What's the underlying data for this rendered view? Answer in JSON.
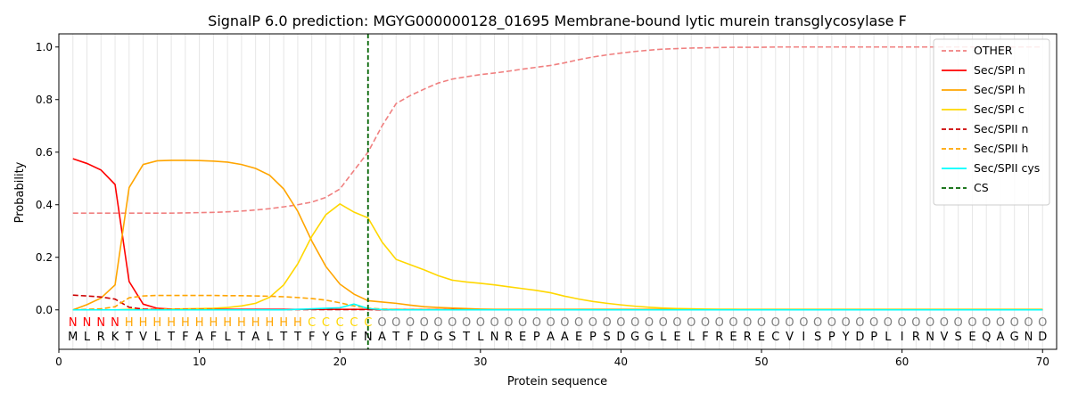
{
  "chart_data": {
    "type": "line",
    "title": "SignalP 6.0 prediction: MGYG000000128_01695 Membrane-bound lytic murein transglycosylase F",
    "xlabel": "Protein sequence",
    "ylabel": "Probability",
    "xlim": [
      0,
      71
    ],
    "ylim": [
      -0.15,
      1.05
    ],
    "xticks": [
      0,
      10,
      20,
      30,
      40,
      50,
      60,
      70
    ],
    "yticks": [
      0.0,
      0.2,
      0.4,
      0.6,
      0.8,
      1.0
    ],
    "legend_position": "top-right",
    "sequence": "MLRKTVLTFAFLTALTTFYGFNATFDGSTLNREPAAEPSDGGLELFRERECVISPYDPLIRNVSEQAGND",
    "labels": "NNNNHHHHHHHHHHHHHCCCCCOOOOOOOOOOOOOOOOOOOOOOOOOOOOOOOOOOOOOOOOOOOOOOOO",
    "label_colors": {
      "N": "#ff0000",
      "H": "#ffa500",
      "C": "#ffd700",
      "O": "#808080"
    },
    "cs_position": 22,
    "series": [
      {
        "name": "OTHER",
        "color": "#f08080",
        "dash": "dashed",
        "values": [
          0.368,
          0.368,
          0.368,
          0.368,
          0.368,
          0.368,
          0.368,
          0.368,
          0.369,
          0.37,
          0.371,
          0.373,
          0.376,
          0.38,
          0.385,
          0.392,
          0.4,
          0.41,
          0.428,
          0.46,
          0.53,
          0.6,
          0.7,
          0.785,
          0.815,
          0.84,
          0.863,
          0.878,
          0.887,
          0.895,
          0.901,
          0.908,
          0.916,
          0.923,
          0.93,
          0.94,
          0.952,
          0.962,
          0.97,
          0.977,
          0.983,
          0.988,
          0.992,
          0.994,
          0.996,
          0.997,
          0.998,
          0.999,
          0.999,
          0.999,
          1.0,
          1.0,
          1.0,
          1.0,
          1.0,
          1.0,
          1.0,
          1.0,
          1.0,
          1.0,
          1.0,
          1.0,
          1.0,
          1.0,
          1.0,
          1.0,
          1.0,
          1.0,
          1.0,
          1.0
        ]
      },
      {
        "name": "Sec/SPI n",
        "color": "#ff0000",
        "dash": "solid",
        "values": [
          0.575,
          0.557,
          0.532,
          0.477,
          0.108,
          0.022,
          0.006,
          0.003,
          0.002,
          0.002,
          0.002,
          0.002,
          0.002,
          0.002,
          0.002,
          0.002,
          0.002,
          0.002,
          0.002,
          0.002,
          0.002,
          0.002,
          0.001,
          0.001,
          0.001,
          0.001,
          0.001,
          0.001,
          0.001,
          0.001,
          0.001,
          0.001,
          0.001,
          0.001,
          0.001,
          0.001,
          0.001,
          0.001,
          0.001,
          0.001,
          0.001,
          0.001,
          0.001,
          0.001,
          0.001,
          0.001,
          0.001,
          0.001,
          0.001,
          0.001,
          0.001,
          0.001,
          0.001,
          0.001,
          0.001,
          0.001,
          0.001,
          0.001,
          0.001,
          0.001,
          0.001,
          0.001,
          0.001,
          0.001,
          0.001,
          0.001,
          0.001,
          0.001,
          0.001,
          0.001
        ]
      },
      {
        "name": "Sec/SPI h",
        "color": "#ffa500",
        "dash": "solid",
        "values": [
          0.0,
          0.02,
          0.045,
          0.095,
          0.465,
          0.553,
          0.567,
          0.569,
          0.569,
          0.568,
          0.566,
          0.562,
          0.553,
          0.538,
          0.512,
          0.46,
          0.375,
          0.262,
          0.165,
          0.098,
          0.06,
          0.035,
          0.03,
          0.025,
          0.018,
          0.012,
          0.009,
          0.007,
          0.005,
          0.003,
          0.002,
          0.002,
          0.002,
          0.002,
          0.002,
          0.002,
          0.002,
          0.002,
          0.002,
          0.002,
          0.002,
          0.002,
          0.002,
          0.002,
          0.002,
          0.002,
          0.002,
          0.002,
          0.002,
          0.002,
          0.002,
          0.002,
          0.002,
          0.002,
          0.002,
          0.002,
          0.002,
          0.002,
          0.002,
          0.002,
          0.002,
          0.002,
          0.002,
          0.002,
          0.002,
          0.002,
          0.002,
          0.002,
          0.002,
          0.002
        ]
      },
      {
        "name": "Sec/SPI c",
        "color": "#ffd700",
        "dash": "solid",
        "values": [
          0.0,
          0.0,
          0.0,
          0.0,
          0.002,
          0.002,
          0.002,
          0.003,
          0.004,
          0.005,
          0.006,
          0.009,
          0.015,
          0.025,
          0.048,
          0.095,
          0.175,
          0.28,
          0.362,
          0.403,
          0.372,
          0.35,
          0.258,
          0.192,
          0.172,
          0.152,
          0.13,
          0.113,
          0.106,
          0.101,
          0.095,
          0.088,
          0.081,
          0.074,
          0.065,
          0.052,
          0.041,
          0.032,
          0.025,
          0.019,
          0.014,
          0.01,
          0.007,
          0.005,
          0.004,
          0.003,
          0.002,
          0.002,
          0.001,
          0.001,
          0.001,
          0.001,
          0.001,
          0.001,
          0.001,
          0.001,
          0.001,
          0.001,
          0.001,
          0.001,
          0.001,
          0.001,
          0.001,
          0.001,
          0.001,
          0.001,
          0.001,
          0.001,
          0.001,
          0.001
        ]
      },
      {
        "name": "Sec/SPII n",
        "color": "#cc0000",
        "dash": "dashed",
        "values": [
          0.056,
          0.053,
          0.049,
          0.041,
          0.01,
          0.003,
          0.001,
          0.001,
          0.001,
          0.001,
          0.001,
          0.001,
          0.001,
          0.001,
          0.001,
          0.001,
          0.001,
          0.001,
          0.001,
          0.001,
          0.001,
          0.001,
          0.0,
          0.0,
          0.0,
          0.0,
          0.0,
          0.0,
          0.0,
          0.0,
          0.0,
          0.0,
          0.0,
          0.0,
          0.0,
          0.0,
          0.0,
          0.0,
          0.0,
          0.0,
          0.0,
          0.0,
          0.0,
          0.0,
          0.0,
          0.0,
          0.0,
          0.0,
          0.0,
          0.0,
          0.0,
          0.0,
          0.0,
          0.0,
          0.0,
          0.0,
          0.0,
          0.0,
          0.0,
          0.0,
          0.0,
          0.0,
          0.0,
          0.0,
          0.0,
          0.0,
          0.0,
          0.0,
          0.0,
          0.0
        ]
      },
      {
        "name": "Sec/SPII h",
        "color": "#ffa500",
        "dash": "dashed",
        "values": [
          0.0,
          0.002,
          0.004,
          0.012,
          0.046,
          0.053,
          0.055,
          0.055,
          0.055,
          0.055,
          0.055,
          0.054,
          0.054,
          0.053,
          0.052,
          0.05,
          0.047,
          0.043,
          0.037,
          0.027,
          0.015,
          0.006,
          0.003,
          0.002,
          0.001,
          0.001,
          0.001,
          0.001,
          0.0,
          0.0,
          0.0,
          0.0,
          0.0,
          0.0,
          0.0,
          0.0,
          0.0,
          0.0,
          0.0,
          0.0,
          0.0,
          0.0,
          0.0,
          0.0,
          0.0,
          0.0,
          0.0,
          0.0,
          0.0,
          0.0,
          0.0,
          0.0,
          0.0,
          0.0,
          0.0,
          0.0,
          0.0,
          0.0,
          0.0,
          0.0,
          0.0,
          0.0,
          0.0,
          0.0,
          0.0,
          0.0,
          0.0,
          0.0,
          0.0,
          0.0
        ]
      },
      {
        "name": "Sec/SPII cys",
        "color": "#00ffff",
        "dash": "solid",
        "values": [
          0.0,
          0.0,
          0.0,
          0.0,
          0.0,
          0.0,
          0.0,
          0.0,
          0.0,
          0.0,
          0.0,
          0.0,
          0.0,
          0.0,
          0.0,
          0.0,
          0.002,
          0.004,
          0.006,
          0.008,
          0.022,
          0.005,
          0.001,
          0.0,
          0.0,
          0.0,
          0.0,
          0.0,
          0.0,
          0.0,
          0.0,
          0.0,
          0.0,
          0.0,
          0.0,
          0.0,
          0.0,
          0.0,
          0.0,
          0.0,
          0.0,
          0.0,
          0.0,
          0.0,
          0.0,
          0.0,
          0.0,
          0.0,
          0.0,
          0.0,
          0.0,
          0.0,
          0.0,
          0.0,
          0.0,
          0.0,
          0.0,
          0.0,
          0.0,
          0.0,
          0.0,
          0.0,
          0.0,
          0.0,
          0.0,
          0.0,
          0.0,
          0.0,
          0.0,
          0.0
        ]
      },
      {
        "name": "CS",
        "color": "#006400",
        "dash": "dashed",
        "vertical_at": 22
      }
    ]
  }
}
